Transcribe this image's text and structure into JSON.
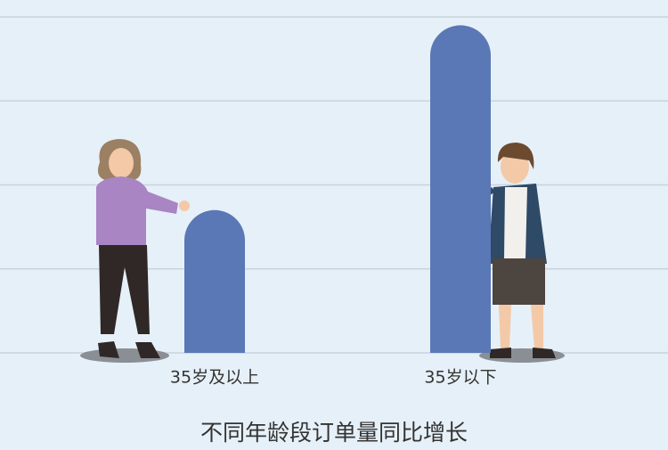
{
  "chart_data": {
    "type": "bar",
    "title": "不同年龄段订单量同比增长",
    "categories": [
      "35岁及以上",
      "35岁以下"
    ],
    "values": [
      1.7,
      3.9
    ],
    "color": "#5a78b6",
    "ylim": [
      0,
      4
    ],
    "yticks": [
      0,
      1,
      2,
      3,
      4
    ],
    "grid": true
  }
}
